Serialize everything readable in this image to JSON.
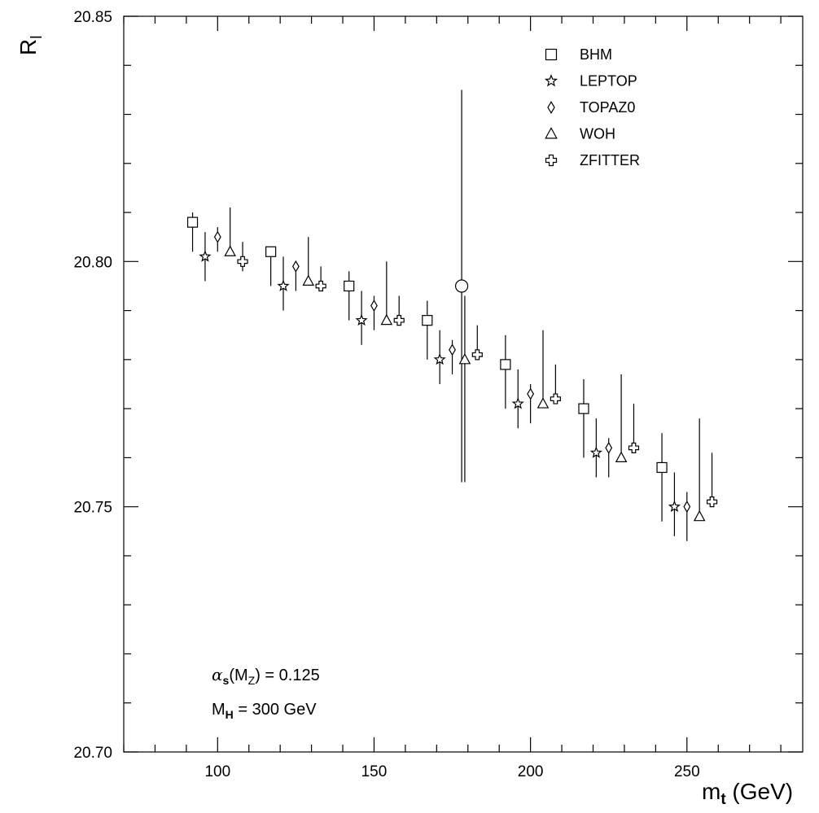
{
  "chart_data": {
    "type": "scatter",
    "xlabel_main": "m",
    "xlabel_sub": "t",
    "xlabel_unit": " (GeV)",
    "ylabel_main": "R",
    "ylabel_sub": "l",
    "xlim": [
      70,
      287
    ],
    "ylim": [
      20.7,
      20.85
    ],
    "x_major_ticks": [
      100,
      150,
      200,
      250
    ],
    "x_minor_step": 10,
    "y_major_ticks": [
      20.7,
      20.75,
      20.8,
      20.85
    ],
    "y_tick_labels": [
      "20.70",
      "20.75",
      "20.80",
      "20.85"
    ],
    "y_minor_step": 0.01,
    "grid": false,
    "legend_position": "top-right",
    "series": [
      {
        "name": "BHM",
        "marker": "square",
        "points": [
          {
            "x": 92,
            "y": 20.808,
            "ylo": 20.802,
            "yhi": 20.81
          },
          {
            "x": 117,
            "y": 20.802,
            "ylo": 20.795,
            "yhi": 20.803
          },
          {
            "x": 142,
            "y": 20.795,
            "ylo": 20.788,
            "yhi": 20.798
          },
          {
            "x": 167,
            "y": 20.788,
            "ylo": 20.78,
            "yhi": 20.792
          },
          {
            "x": 192,
            "y": 20.779,
            "ylo": 20.77,
            "yhi": 20.785
          },
          {
            "x": 217,
            "y": 20.77,
            "ylo": 20.76,
            "yhi": 20.776
          },
          {
            "x": 242,
            "y": 20.758,
            "ylo": 20.747,
            "yhi": 20.765
          }
        ]
      },
      {
        "name": "LEPTOP",
        "marker": "star",
        "points": [
          {
            "x": 96,
            "y": 20.801,
            "ylo": 20.796,
            "yhi": 20.806
          },
          {
            "x": 121,
            "y": 20.795,
            "ylo": 20.79,
            "yhi": 20.801
          },
          {
            "x": 146,
            "y": 20.788,
            "ylo": 20.783,
            "yhi": 20.794
          },
          {
            "x": 171,
            "y": 20.78,
            "ylo": 20.775,
            "yhi": 20.786
          },
          {
            "x": 196,
            "y": 20.771,
            "ylo": 20.766,
            "yhi": 20.778
          },
          {
            "x": 221,
            "y": 20.761,
            "ylo": 20.756,
            "yhi": 20.768
          },
          {
            "x": 246,
            "y": 20.75,
            "ylo": 20.744,
            "yhi": 20.757
          }
        ]
      },
      {
        "name": "TOPAZ0",
        "marker": "diamond",
        "points": [
          {
            "x": 100,
            "y": 20.805,
            "ylo": 20.802,
            "yhi": 20.807
          },
          {
            "x": 125,
            "y": 20.799,
            "ylo": 20.794,
            "yhi": 20.8
          },
          {
            "x": 150,
            "y": 20.791,
            "ylo": 20.786,
            "yhi": 20.793
          },
          {
            "x": 175,
            "y": 20.782,
            "ylo": 20.777,
            "yhi": 20.784
          },
          {
            "x": 200,
            "y": 20.773,
            "ylo": 20.767,
            "yhi": 20.775
          },
          {
            "x": 225,
            "y": 20.762,
            "ylo": 20.756,
            "yhi": 20.764
          },
          {
            "x": 250,
            "y": 20.75,
            "ylo": 20.743,
            "yhi": 20.753
          }
        ]
      },
      {
        "name": "WOH",
        "marker": "triangle",
        "points": [
          {
            "x": 104,
            "y": 20.802,
            "ylo": 20.802,
            "yhi": 20.811
          },
          {
            "x": 129,
            "y": 20.796,
            "ylo": 20.796,
            "yhi": 20.805
          },
          {
            "x": 154,
            "y": 20.788,
            "ylo": 20.788,
            "yhi": 20.8
          },
          {
            "x": 179,
            "y": 20.78,
            "ylo": 20.755,
            "yhi": 20.793
          },
          {
            "x": 204,
            "y": 20.771,
            "ylo": 20.771,
            "yhi": 20.786
          },
          {
            "x": 229,
            "y": 20.76,
            "ylo": 20.76,
            "yhi": 20.777
          },
          {
            "x": 254,
            "y": 20.748,
            "ylo": 20.748,
            "yhi": 20.768
          }
        ]
      },
      {
        "name": "ZFITTER",
        "marker": "cross",
        "points": [
          {
            "x": 108,
            "y": 20.8,
            "ylo": 20.798,
            "yhi": 20.804
          },
          {
            "x": 133,
            "y": 20.795,
            "ylo": 20.794,
            "yhi": 20.799
          },
          {
            "x": 158,
            "y": 20.788,
            "ylo": 20.787,
            "yhi": 20.793
          },
          {
            "x": 183,
            "y": 20.781,
            "ylo": 20.78,
            "yhi": 20.787
          },
          {
            "x": 208,
            "y": 20.772,
            "ylo": 20.771,
            "yhi": 20.779
          },
          {
            "x": 233,
            "y": 20.762,
            "ylo": 20.761,
            "yhi": 20.771
          },
          {
            "x": 258,
            "y": 20.751,
            "ylo": 20.75,
            "yhi": 20.761
          }
        ]
      }
    ],
    "reference_point": {
      "marker": "circle",
      "x": 178,
      "y": 20.795,
      "ylo": 20.755,
      "yhi": 20.835
    },
    "annotations": [
      {
        "parts": [
          "α",
          "s",
          "(M",
          "Z",
          ") = 0.125"
        ]
      },
      {
        "parts": [
          "M",
          "H",
          " = 300 GeV"
        ]
      }
    ]
  }
}
